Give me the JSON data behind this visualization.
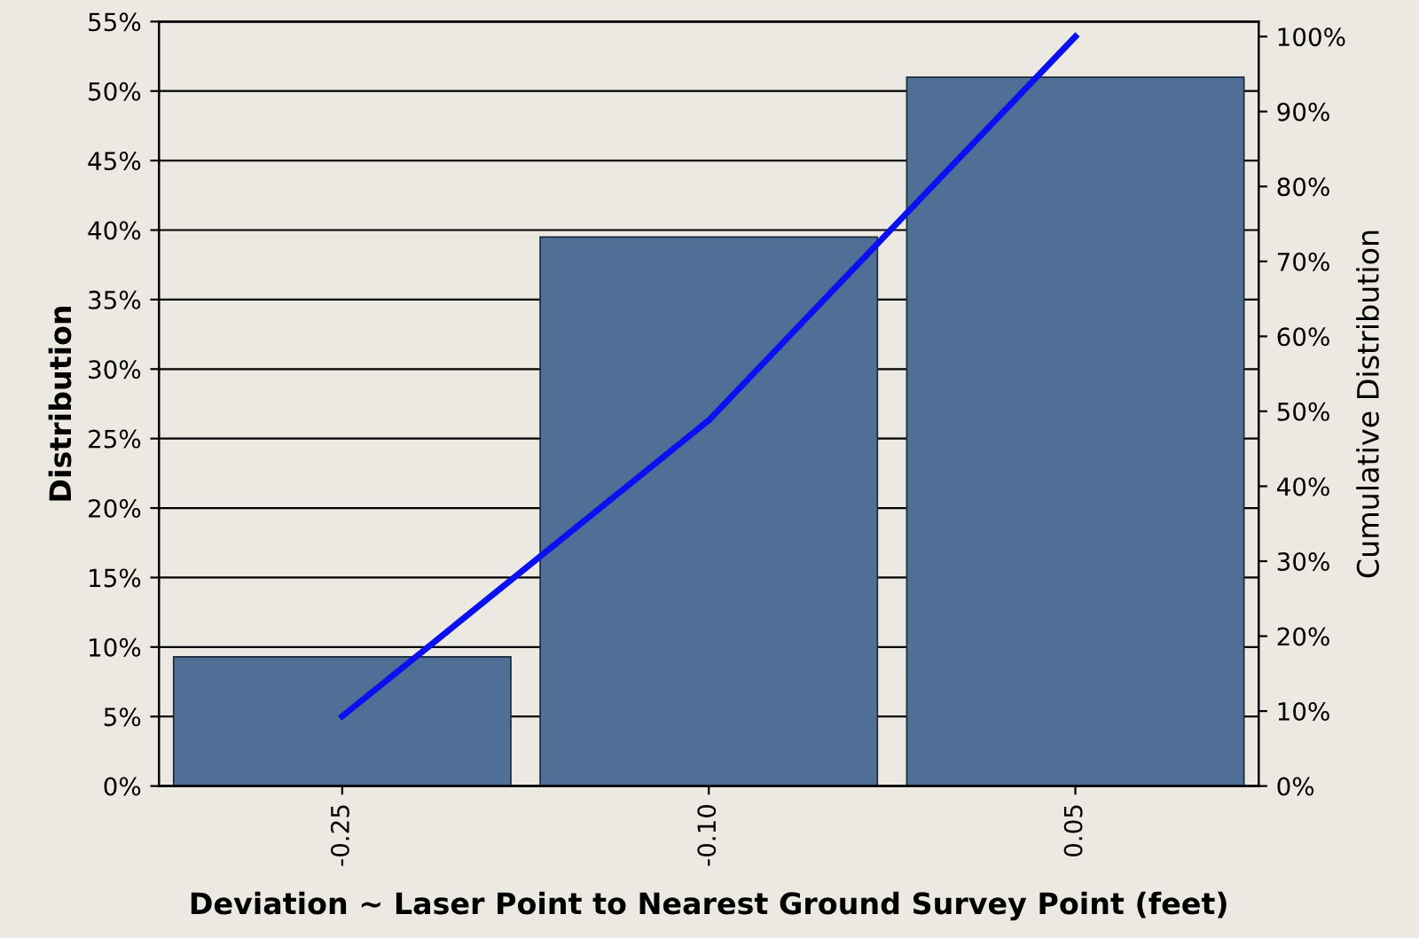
{
  "chart_data": {
    "type": "bar",
    "xlabel": "Deviation ~ Laser Point to Nearest Ground Survey Point (feet)",
    "ylabel": "Distribution",
    "y2label": "Cumulative Distribution",
    "categories": [
      "-0.25",
      "-0.10",
      "0.05"
    ],
    "series": [
      {
        "color": "#4f6f96",
        "values": [
          9.3,
          39.5,
          51.0
        ]
      },
      {
        "type": "line",
        "axis": "y2",
        "color": "#0a10f0",
        "values": [
          9.3,
          48.8,
          100.0
        ]
      }
    ],
    "ylim": [
      0,
      55
    ],
    "yticks": [
      {
        "value": 0,
        "label": "0%"
      },
      {
        "value": 5,
        "label": "5%"
      },
      {
        "value": 10,
        "label": "10%"
      },
      {
        "value": 15,
        "label": "15%"
      },
      {
        "value": 20,
        "label": "20%"
      },
      {
        "value": 25,
        "label": "25%"
      },
      {
        "value": 30,
        "label": "30%"
      },
      {
        "value": 35,
        "label": "35%"
      },
      {
        "value": 40,
        "label": "40%"
      },
      {
        "value": 45,
        "label": "45%"
      },
      {
        "value": 50,
        "label": "50%"
      },
      {
        "value": 55,
        "label": "55%"
      }
    ],
    "y2lim": [
      0,
      102
    ],
    "y2ticks": [
      {
        "value": 0,
        "label": "0%"
      },
      {
        "value": 10,
        "label": "10%"
      },
      {
        "value": 20,
        "label": "20%"
      },
      {
        "value": 30,
        "label": "30%"
      },
      {
        "value": 40,
        "label": "40%"
      },
      {
        "value": 50,
        "label": "50%"
      },
      {
        "value": 60,
        "label": "60%"
      },
      {
        "value": 70,
        "label": "70%"
      },
      {
        "value": 80,
        "label": "80%"
      },
      {
        "value": 90,
        "label": "90%"
      },
      {
        "value": 100,
        "label": "100%"
      }
    ],
    "grid": "y",
    "legend": false,
    "marker": "none",
    "line_style": "solid"
  }
}
